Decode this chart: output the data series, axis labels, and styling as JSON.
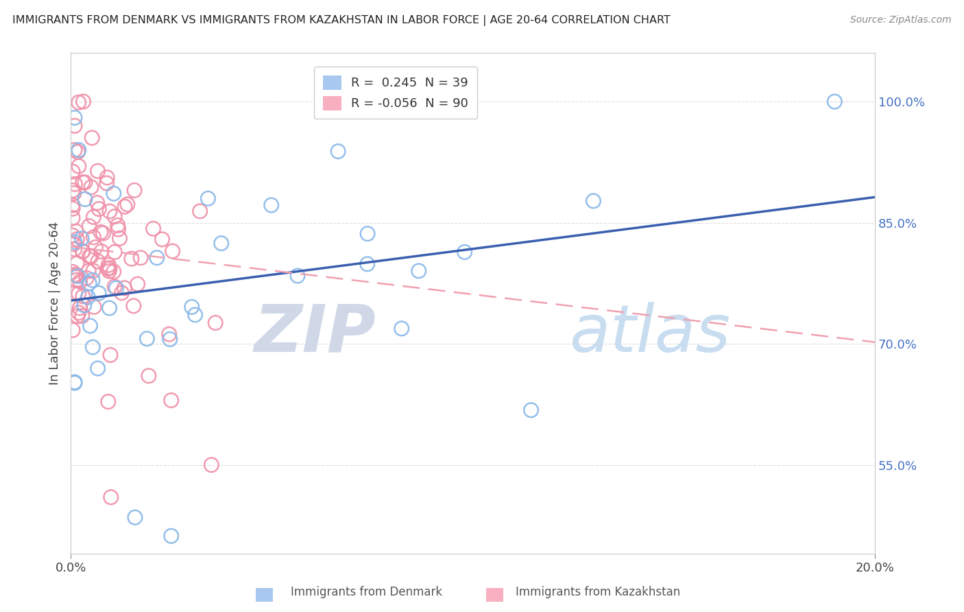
{
  "title": "IMMIGRANTS FROM DENMARK VS IMMIGRANTS FROM KAZAKHSTAN IN LABOR FORCE | AGE 20-64 CORRELATION CHART",
  "source": "Source: ZipAtlas.com",
  "ylabel": "In Labor Force | Age 20-64",
  "xlim": [
    0.0,
    0.2
  ],
  "ylim": [
    0.44,
    1.06
  ],
  "watermark_zip": "ZIP",
  "watermark_atlas": "atlas",
  "legend_line1": "R =  0.245  N = 39",
  "legend_line2": "R = -0.056  N = 90",
  "denmark_edge_color": "#89b8e8",
  "kazakhstan_edge_color": "#f090a8",
  "denmark_trend_color": "#3b5fb0",
  "kazakhstan_trend_color": "#f0a0b0",
  "y_tick_vals": [
    0.55,
    0.7,
    0.85,
    1.0
  ],
  "y_tick_labels": [
    "55.0%",
    "70.0%",
    "85.0%",
    "100.0%"
  ],
  "denmark_R": 0.245,
  "kazakhstan_R": -0.056,
  "denmark_N": 39,
  "kazakhstan_N": 90
}
